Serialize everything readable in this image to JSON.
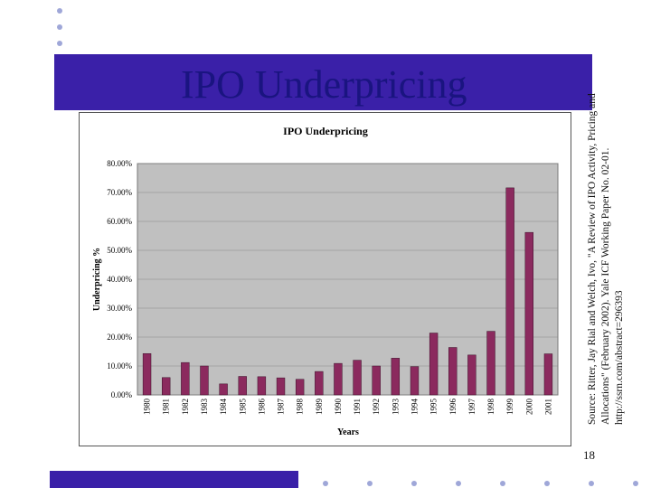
{
  "slide": {
    "title": "IPO Underpricing",
    "source_lines": [
      "Source: Ritter, Jay Rial and Welch, Ivo, \"A Review of IPO Activity, Pricing and",
      "Allocations\" (February 2002). Yale ICF Working Paper No. 02-01.",
      "http://ssrn.com/abstract=296393"
    ],
    "page_number": "18"
  },
  "colors": {
    "band": "#3a20a8",
    "title": "#1a1480",
    "plot_bg": "#c0c0c0",
    "bar": "#8b2a5e",
    "dot": "#9fa7d8"
  },
  "chart_data": {
    "type": "bar",
    "title": "IPO Underpricing",
    "xlabel": "Years",
    "ylabel": "Underpricing %",
    "ylim": [
      0,
      80
    ],
    "y_ticks": [
      "0.00%",
      "10.00%",
      "20.00%",
      "30.00%",
      "40.00%",
      "50.00%",
      "60.00%",
      "70.00%",
      "80.00%"
    ],
    "grid": true,
    "legend": "none",
    "categories": [
      "1980",
      "1981",
      "1982",
      "1983",
      "1984",
      "1985",
      "1986",
      "1987",
      "1988",
      "1989",
      "1990",
      "1991",
      "1992",
      "1993",
      "1994",
      "1995",
      "1996",
      "1997",
      "1998",
      "1999",
      "2000",
      "2001"
    ],
    "values": [
      14.3,
      6.0,
      11.2,
      10.0,
      3.8,
      6.4,
      6.3,
      5.9,
      5.4,
      8.1,
      10.9,
      12.0,
      10.0,
      12.7,
      9.8,
      21.4,
      16.4,
      13.8,
      22.0,
      71.6,
      56.2,
      14.2
    ]
  }
}
